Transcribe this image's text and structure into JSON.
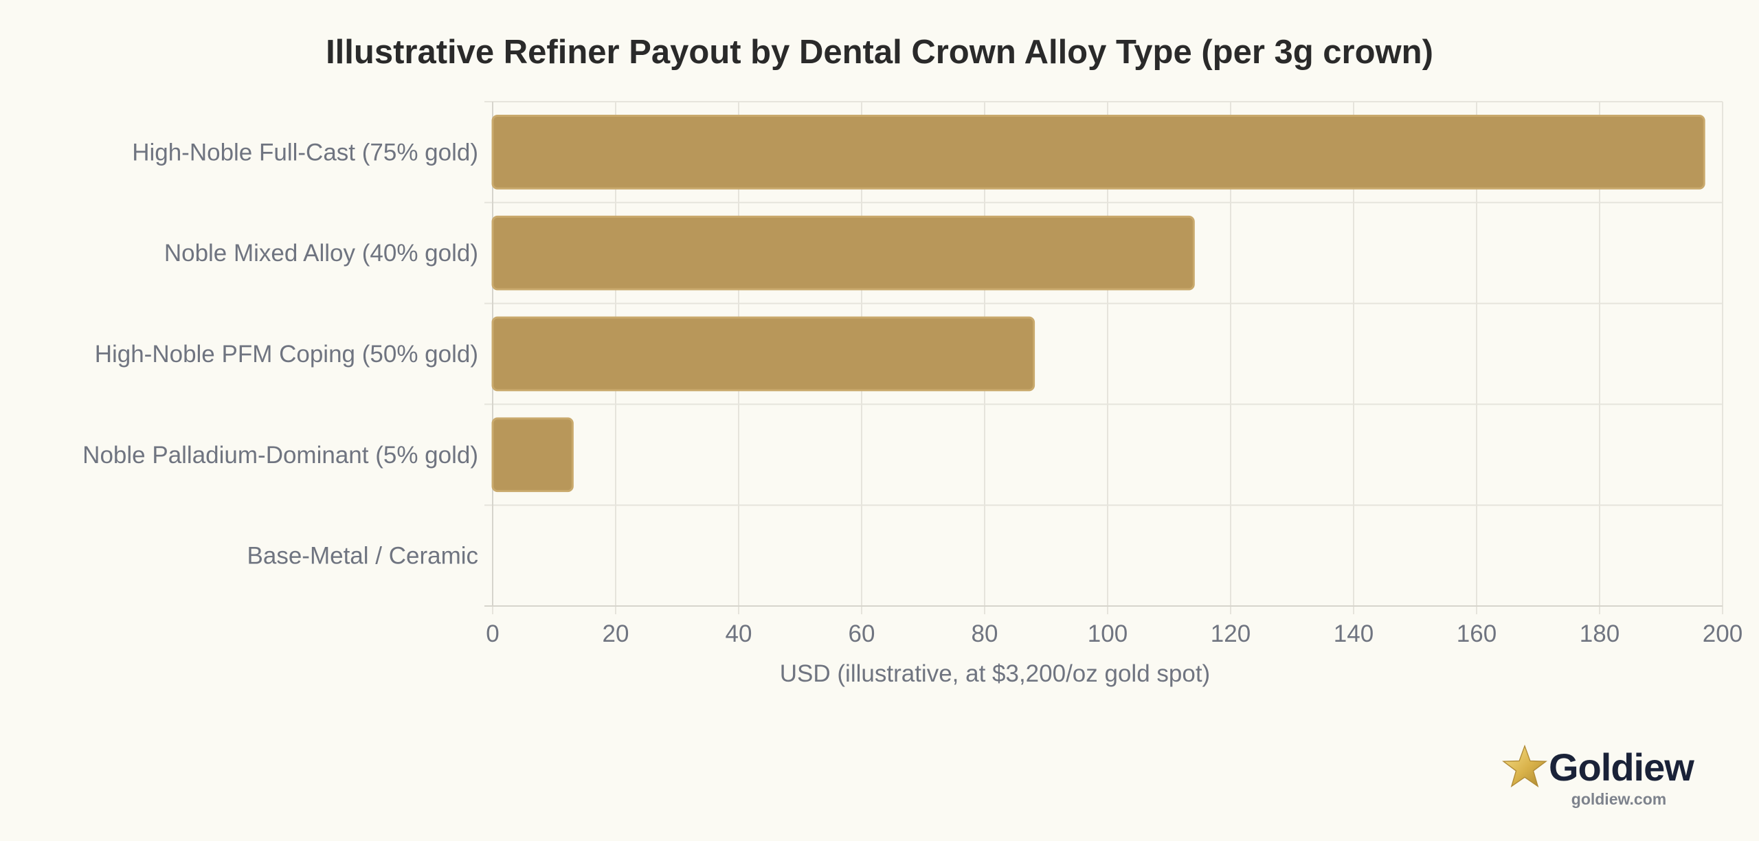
{
  "chart_data": {
    "type": "bar",
    "orientation": "horizontal",
    "title": "Illustrative Refiner Payout by Dental Crown Alloy Type (per 3g crown)",
    "xlabel": "USD (illustrative, at $3,200/oz gold spot)",
    "ylabel": "",
    "categories": [
      "High-Noble Full-Cast (75% gold)",
      "Noble Mixed Alloy (40% gold)",
      "High-Noble PFM Coping (50% gold)",
      "Noble Palladium-Dominant (5% gold)",
      "Base-Metal / Ceramic"
    ],
    "values": [
      197,
      114,
      88,
      13,
      0
    ],
    "xlim": [
      0,
      200
    ],
    "xticks": [
      "0",
      "20",
      "40",
      "60",
      "80",
      "100",
      "120",
      "140",
      "160",
      "180",
      "200"
    ],
    "grid": true,
    "legend": "none",
    "bar_color": "#b8975a",
    "bar_edge_color": "#c9a96c"
  },
  "brand": {
    "name": "Goldiew",
    "url": "goldiew.com",
    "icon": "star-icon"
  }
}
